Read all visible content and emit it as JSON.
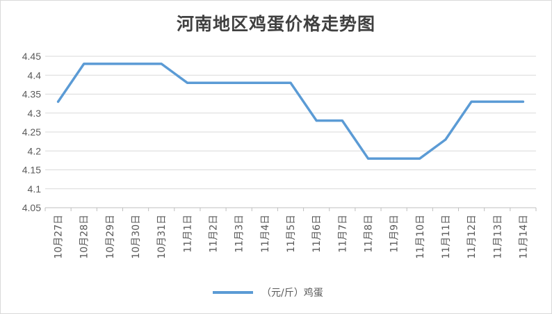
{
  "chart_data": {
    "type": "line",
    "title": "河南地区鸡蛋价格走势图",
    "categories": [
      "10月27日",
      "10月28日",
      "10月29日",
      "10月30日",
      "10月31日",
      "11月1日",
      "11月2日",
      "11月3日",
      "11月4日",
      "11月5日",
      "11月6日",
      "11月7日",
      "11月8日",
      "11月9日",
      "11月10日",
      "11月11日",
      "11月12日",
      "11月13日",
      "11月14日"
    ],
    "yticks": [
      "4.05",
      "4.1",
      "4.15",
      "4.2",
      "4.25",
      "4.3",
      "4.35",
      "4.4",
      "4.45"
    ],
    "ylim": [
      4.05,
      4.45
    ],
    "grid": true,
    "legend_position": "bottom",
    "series": [
      {
        "name": "（元/斤）鸡蛋",
        "color": "#5b9bd5",
        "values": [
          4.33,
          4.43,
          4.43,
          4.43,
          4.43,
          4.38,
          4.38,
          4.38,
          4.38,
          4.38,
          4.28,
          4.28,
          4.18,
          4.18,
          4.18,
          4.23,
          4.33,
          4.33,
          4.33
        ]
      }
    ]
  }
}
